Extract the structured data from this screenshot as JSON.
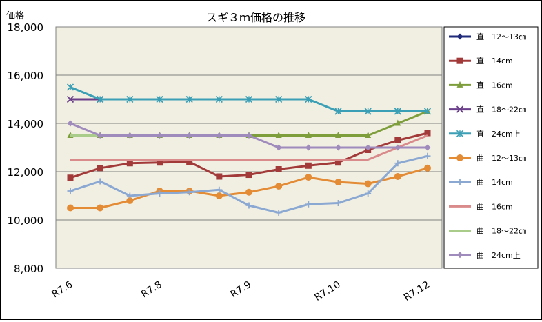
{
  "chart_data": {
    "type": "line",
    "title": "スギ３ｍ価格の推移",
    "ylabel": "価格",
    "xlabel": "",
    "ylim": [
      8000,
      18000
    ],
    "yticks": [
      8000,
      10000,
      12000,
      14000,
      16000,
      18000
    ],
    "ytick_labels": [
      "8,000",
      "10,000",
      "12,000",
      "14,000",
      "16,000",
      "18,000"
    ],
    "x_tick_labels": [
      {
        "label": "R7.6",
        "index": 0
      },
      {
        "label": "R7.8",
        "index": 3
      },
      {
        "label": "R7.9",
        "index": 6
      },
      {
        "label": "R7.10",
        "index": 9
      },
      {
        "label": "R7.12",
        "index": 12
      }
    ],
    "num_points": 13,
    "grid": "horizontal",
    "legend_position": "right",
    "plot_background": "#f1efe2",
    "series": [
      {
        "name": "直　12～13㎝",
        "color": "#1f2a7a",
        "marker": "diamond",
        "values": [
          null,
          null,
          null,
          null,
          null,
          null,
          null,
          null,
          null,
          null,
          null,
          null,
          null
        ]
      },
      {
        "name": "直　14cm",
        "color": "#a33a3a",
        "marker": "square",
        "values": [
          11750,
          12150,
          12350,
          12380,
          12400,
          11800,
          11870,
          12100,
          12250,
          12380,
          12900,
          13300,
          13600
        ]
      },
      {
        "name": "直　16cm",
        "color": "#7e9e3c",
        "marker": "triangle",
        "values": [
          13500,
          13500,
          13500,
          13500,
          13500,
          13500,
          13500,
          13500,
          13500,
          13500,
          13500,
          14000,
          14500
        ]
      },
      {
        "name": "直　18～22㎝",
        "color": "#6a3e8a",
        "marker": "x",
        "values": [
          15000,
          15000,
          null,
          null,
          null,
          null,
          null,
          null,
          null,
          null,
          null,
          null,
          null
        ]
      },
      {
        "name": "直　24cm上",
        "color": "#3b9fb5",
        "marker": "star",
        "values": [
          15500,
          15000,
          15000,
          15000,
          15000,
          15000,
          15000,
          15000,
          15000,
          14500,
          14500,
          14500,
          14500
        ]
      },
      {
        "name": "曲　12～13㎝",
        "color": "#e38b35",
        "marker": "circle",
        "values": [
          10500,
          10500,
          10800,
          11200,
          11200,
          11000,
          11150,
          11400,
          11770,
          11570,
          11500,
          11800,
          12150
        ]
      },
      {
        "name": "曲　14cm",
        "color": "#8ba8d3",
        "marker": "plus",
        "values": [
          11200,
          11600,
          11000,
          11100,
          11150,
          11250,
          10600,
          10300,
          10650,
          10700,
          11100,
          12350,
          12650
        ]
      },
      {
        "name": "曲　16cm",
        "color": "#d98a8a",
        "marker": "none",
        "values": [
          12500,
          12500,
          12500,
          12500,
          12500,
          12500,
          12500,
          12500,
          12500,
          12500,
          12500,
          13000,
          13500
        ]
      },
      {
        "name": "曲　18～22㎝",
        "color": "#a9cc8a",
        "marker": "none",
        "values": [
          13500,
          13500,
          null,
          null,
          null,
          null,
          null,
          null,
          null,
          null,
          null,
          null,
          null
        ]
      },
      {
        "name": "曲　24cm上",
        "color": "#a08bbd",
        "marker": "diamond",
        "values": [
          14000,
          13500,
          13500,
          13500,
          13500,
          13500,
          13500,
          13000,
          13000,
          13000,
          13000,
          13000,
          13000
        ]
      }
    ]
  }
}
